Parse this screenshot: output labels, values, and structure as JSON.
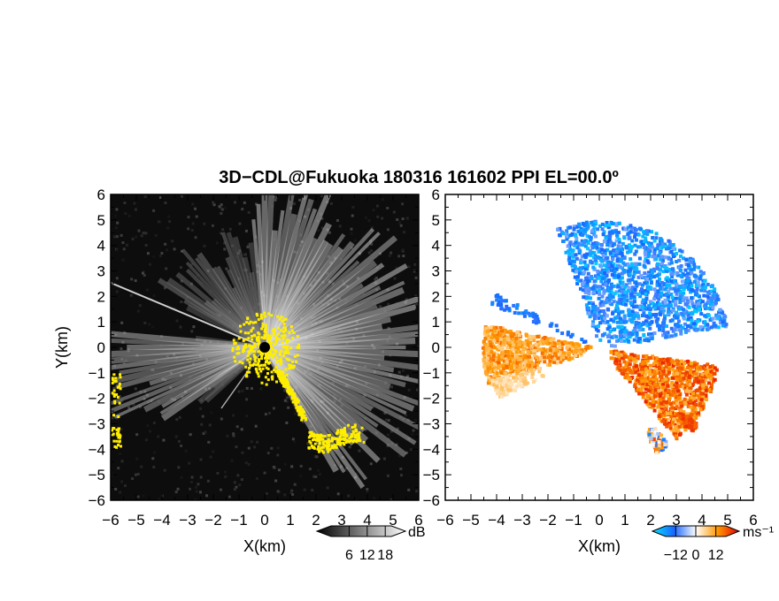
{
  "chart_data": [
    {
      "type": "heatmap",
      "panel": "reflectivity",
      "title": "3D−CDL@Fukuoka 180316 161602 PPI EL=00.0º",
      "xlabel": "X(km)",
      "ylabel": "Y(km)",
      "xlim": [
        -6,
        6
      ],
      "ylim": [
        -6,
        6
      ],
      "x_ticks": [
        -6,
        -5,
        -4,
        -3,
        -2,
        -1,
        0,
        1,
        2,
        3,
        4,
        5,
        6
      ],
      "y_ticks": [
        -6,
        -5,
        -4,
        -3,
        -2,
        -1,
        0,
        1,
        2,
        3,
        4,
        5,
        6
      ],
      "x_tick_labels": [
        "−6",
        "−5",
        "−4",
        "−3",
        "−2",
        "−1",
        "0",
        "1",
        "2",
        "3",
        "4",
        "5",
        "6"
      ],
      "y_tick_labels": [
        "−6",
        "−5",
        "−4",
        "−3",
        "−2",
        "−1",
        "0",
        "1",
        "2",
        "3",
        "4",
        "5",
        "6"
      ],
      "colorbar": {
        "unit": "dB",
        "ticks": [
          6,
          12,
          18
        ],
        "tick_labels": [
          "6",
          "12",
          "18"
        ],
        "range": [
          0,
          20
        ],
        "colors": [
          "#000000",
          "#ffffff"
        ]
      },
      "background_color": "#0d0d0d",
      "overlay_color": "#ffee00"
    },
    {
      "type": "heatmap",
      "panel": "doppler_velocity",
      "xlabel": "X(km)",
      "xlim": [
        -6,
        6
      ],
      "ylim": [
        -6,
        6
      ],
      "x_ticks": [
        -6,
        -5,
        -4,
        -3,
        -2,
        -1,
        0,
        1,
        2,
        3,
        4,
        5,
        6
      ],
      "y_ticks": [
        -6,
        -5,
        -4,
        -3,
        -2,
        -1,
        0,
        1,
        2,
        3,
        4,
        5,
        6
      ],
      "x_tick_labels": [
        "−6",
        "−5",
        "−4",
        "−3",
        "−2",
        "−1",
        "0",
        "1",
        "2",
        "3",
        "4",
        "5",
        "6"
      ],
      "y_tick_labels": [
        "−6",
        "−5",
        "−4",
        "−3",
        "−2",
        "−1",
        "0",
        "1",
        "2",
        "3",
        "4",
        "5",
        "6"
      ],
      "colorbar": {
        "unit": "ms⁻¹",
        "ticks": [
          -12,
          0,
          12
        ],
        "tick_labels": [
          "−12",
          "0",
          "12"
        ],
        "range": [
          -18,
          18
        ],
        "colors": [
          "#00e5ff",
          "#1a66ff",
          "#ffffff",
          "#ff9900",
          "#e60000"
        ]
      },
      "approaching_color": "#1a55ff",
      "receding_color": "#ff5a00"
    }
  ]
}
